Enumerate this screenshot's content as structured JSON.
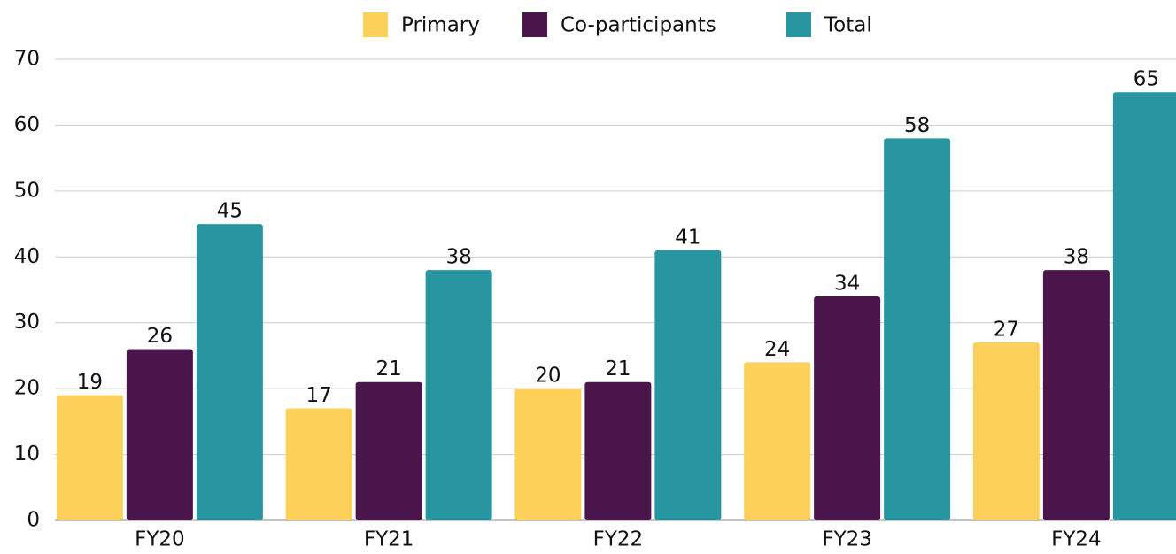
{
  "chart_data": {
    "type": "bar",
    "categories": [
      "FY20",
      "FY21",
      "FY22",
      "FY23",
      "FY24"
    ],
    "series": [
      {
        "name": "Primary",
        "color": "#fdd05a",
        "values": [
          19,
          17,
          20,
          24,
          27
        ]
      },
      {
        "name": "Co-participants",
        "color": "#4a154b",
        "values": [
          26,
          21,
          21,
          34,
          38
        ]
      },
      {
        "name": "Total",
        "color": "#2796a0",
        "values": [
          45,
          38,
          41,
          58,
          65
        ]
      }
    ],
    "ylim": [
      0,
      70
    ],
    "yticks": [
      0,
      10,
      20,
      30,
      40,
      50,
      60,
      70
    ],
    "grid": true,
    "legend": "top"
  }
}
